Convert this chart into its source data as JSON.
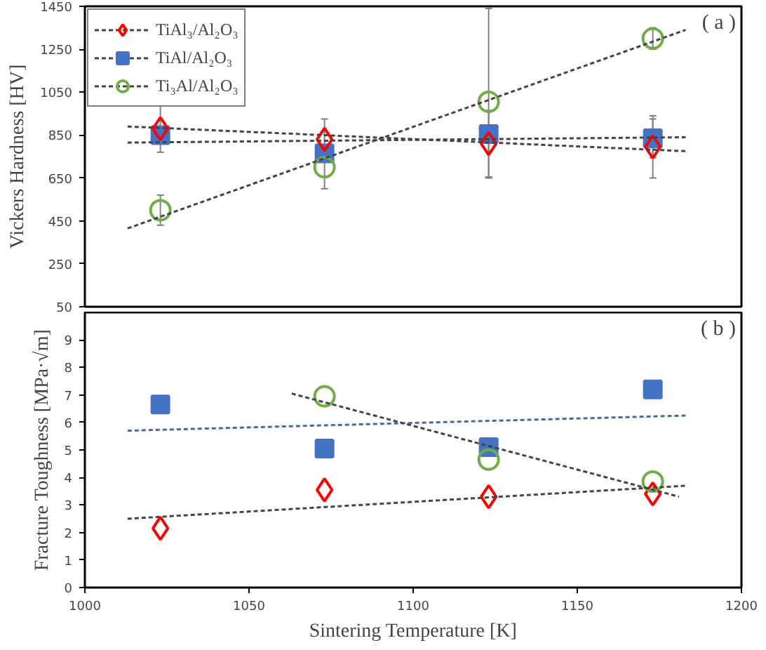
{
  "chart_data": [
    {
      "type": "scatter",
      "ylabel": "Vickers Hardness [HV]",
      "xlim": [
        1000,
        1200
      ],
      "xticks": [
        1000,
        1050,
        1100,
        1150,
        1200
      ],
      "ylim": [
        50,
        1450
      ],
      "yticks": [
        50,
        250,
        450,
        650,
        850,
        1050,
        1250,
        1450
      ],
      "tick_labels": "y",
      "grid": false,
      "legend": "top left",
      "annotations": [
        "( a )"
      ],
      "x": [
        1023,
        1073,
        1123,
        1173
      ],
      "series": [
        {
          "name": "TiAl₃/Al₂O₃",
          "color": "#ff0000",
          "marker": "diamond",
          "values": [
            880,
            830,
            810,
            795
          ],
          "errors": [
            110,
            95,
            155,
            145
          ]
        },
        {
          "name": "TiAl/Al₂O₃",
          "color": "#4472c4",
          "marker": "square",
          "values": [
            850,
            765,
            855,
            835
          ],
          "errors": [
            null,
            null,
            null,
            90
          ]
        },
        {
          "name": "Ti₃Al/Al₂O₃",
          "color": "#70ad47",
          "marker": "circle",
          "values": [
            500,
            700,
            1005,
            1300
          ],
          "errors": [
            70,
            100,
            [
              650,
              1440
            ],
            50
          ]
        },
        {
          "type": "line",
          "color": "#444444",
          "line_style": "dotted",
          "x": [
            1013,
            1183
          ],
          "values": [
            890,
            775
          ]
        },
        {
          "type": "line",
          "color": "#444444",
          "line_style": "dotted",
          "x": [
            1013,
            1183
          ],
          "values": [
            815,
            840
          ]
        },
        {
          "type": "line",
          "color": "#444444",
          "line_style": "dotted",
          "x": [
            1013,
            1183
          ],
          "values": [
            415,
            1340
          ]
        }
      ]
    },
    {
      "type": "scatter",
      "xlabel": "Sintering Temperature [K]",
      "ylabel": "Fracture Toughness [MPa·√m]",
      "xlim": [
        1000,
        1200
      ],
      "xticks": [
        1000,
        1050,
        1100,
        1150,
        1200
      ],
      "ylim": [
        0,
        10
      ],
      "yticks": [
        0,
        1,
        2,
        3,
        4,
        5,
        6,
        7,
        8,
        9
      ],
      "grid": false,
      "annotations": [
        "( b )"
      ],
      "x": [
        1023,
        1073,
        1123,
        1173
      ],
      "series": [
        {
          "color": "#ff0000",
          "marker": "diamond",
          "values": [
            2.15,
            3.55,
            3.3,
            3.4
          ]
        },
        {
          "color": "#4472c4",
          "marker": "square",
          "values": [
            6.65,
            5.05,
            5.1,
            7.2
          ]
        },
        {
          "color": "#70ad47",
          "marker": "circle",
          "values": [
            null,
            6.95,
            4.65,
            3.85
          ]
        },
        {
          "type": "line",
          "color": "#444444",
          "line_style": "dotted",
          "x": [
            1013,
            1183
          ],
          "values": [
            2.5,
            3.7
          ]
        },
        {
          "type": "line",
          "color": "#4a6a9a",
          "line_style": "dotted",
          "x": [
            1013,
            1183
          ],
          "values": [
            5.7,
            6.25
          ]
        },
        {
          "type": "line",
          "color": "#444444",
          "line_style": "dotted",
          "x": [
            1063,
            1181
          ],
          "values": [
            7.05,
            3.3
          ]
        }
      ]
    }
  ]
}
